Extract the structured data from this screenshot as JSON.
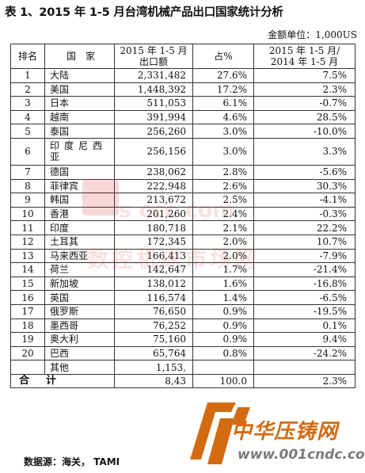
{
  "title": "表 1、2015 年 1-5 月台湾机械产品出口国家统计分析",
  "unit": "金额单位：1,000US",
  "headers": {
    "rank": "排名",
    "country": "国　家",
    "value_line1": "2015 年 1-5 月",
    "value_line2": "出口额",
    "share": "占%",
    "growth_line1": "2015 年 1-5 月/",
    "growth_line2": "2014 年 1-5 月"
  },
  "rows": [
    {
      "rank": "1",
      "country": "大陆",
      "value": "2,331,482",
      "share": "27.6%",
      "growth": "7.5%"
    },
    {
      "rank": "2",
      "country": "美国",
      "value": "1,448,392",
      "share": "17.2%",
      "growth": "2.3%"
    },
    {
      "rank": "3",
      "country": "日本",
      "value": "511,053",
      "share": "6.1%",
      "growth": "-0.7%"
    },
    {
      "rank": "4",
      "country": "越南",
      "value": "391,994",
      "share": "4.6%",
      "growth": "28.5%"
    },
    {
      "rank": "5",
      "country": "泰国",
      "value": "256,260",
      "share": "3.0%",
      "growth": "-10.0%"
    },
    {
      "rank": "6",
      "country": "印度尼西亚",
      "value": "256,156",
      "share": "3.0%",
      "growth": "3.3%"
    },
    {
      "rank": "7",
      "country": "德国",
      "value": "238,062",
      "share": "2.8%",
      "growth": "-5.6%"
    },
    {
      "rank": "8",
      "country": "菲律宾",
      "value": "222,948",
      "share": "2.6%",
      "growth": "30.3%"
    },
    {
      "rank": "9",
      "country": "韩国",
      "value": "213,672",
      "share": "2.5%",
      "growth": "-4.1%"
    },
    {
      "rank": "10",
      "country": "香港",
      "value": "201,260",
      "share": "2.4%",
      "growth": "-0.3%"
    },
    {
      "rank": "11",
      "country": "印度",
      "value": "180,718",
      "share": "2.1%",
      "growth": "22.2%"
    },
    {
      "rank": "12",
      "country": "土耳其",
      "value": "172,345",
      "share": "2.0%",
      "growth": "10.7%"
    },
    {
      "rank": "13",
      "country": "马来西亚",
      "value": "166,413",
      "share": "2.0%",
      "growth": "-7.9%"
    },
    {
      "rank": "14",
      "country": "荷兰",
      "value": "142,647",
      "share": "1.7%",
      "growth": "-21.4%"
    },
    {
      "rank": "15",
      "country": "新加坡",
      "value": "138,012",
      "share": "1.6%",
      "growth": "-16.8%"
    },
    {
      "rank": "16",
      "country": "英国",
      "value": "116,574",
      "share": "1.4%",
      "growth": "-6.5%"
    },
    {
      "rank": "17",
      "country": "俄罗斯",
      "value": "76,650",
      "share": "0.9%",
      "growth": "-19.5%"
    },
    {
      "rank": "18",
      "country": "墨西哥",
      "value": "76,252",
      "share": "0.9%",
      "growth": "0.1%"
    },
    {
      "rank": "19",
      "country": "奥大利",
      "value": "75,160",
      "share": "0.9%",
      "growth": "9.4%"
    },
    {
      "rank": "20",
      "country": "巴西",
      "value": "65,764",
      "share": "0.8%",
      "growth": "-24.2%"
    },
    {
      "rank": "",
      "country": "其他",
      "value": "1,153,",
      "share": "",
      "growth": ""
    }
  ],
  "total": {
    "label": "合　计",
    "value": "8,43",
    "share": "100.0",
    "growth": "2.3%"
  },
  "source": "数据源：海关，  TAMI",
  "watermark": {
    "line1": "s ccc.com",
    "line2": "数控机床市场网"
  },
  "logo": {
    "name": "中华压铸网",
    "url": "www.001cndc.com"
  },
  "colors": {
    "logo_orange": "#d36b12",
    "watermark_red": "#cd2d2d"
  }
}
